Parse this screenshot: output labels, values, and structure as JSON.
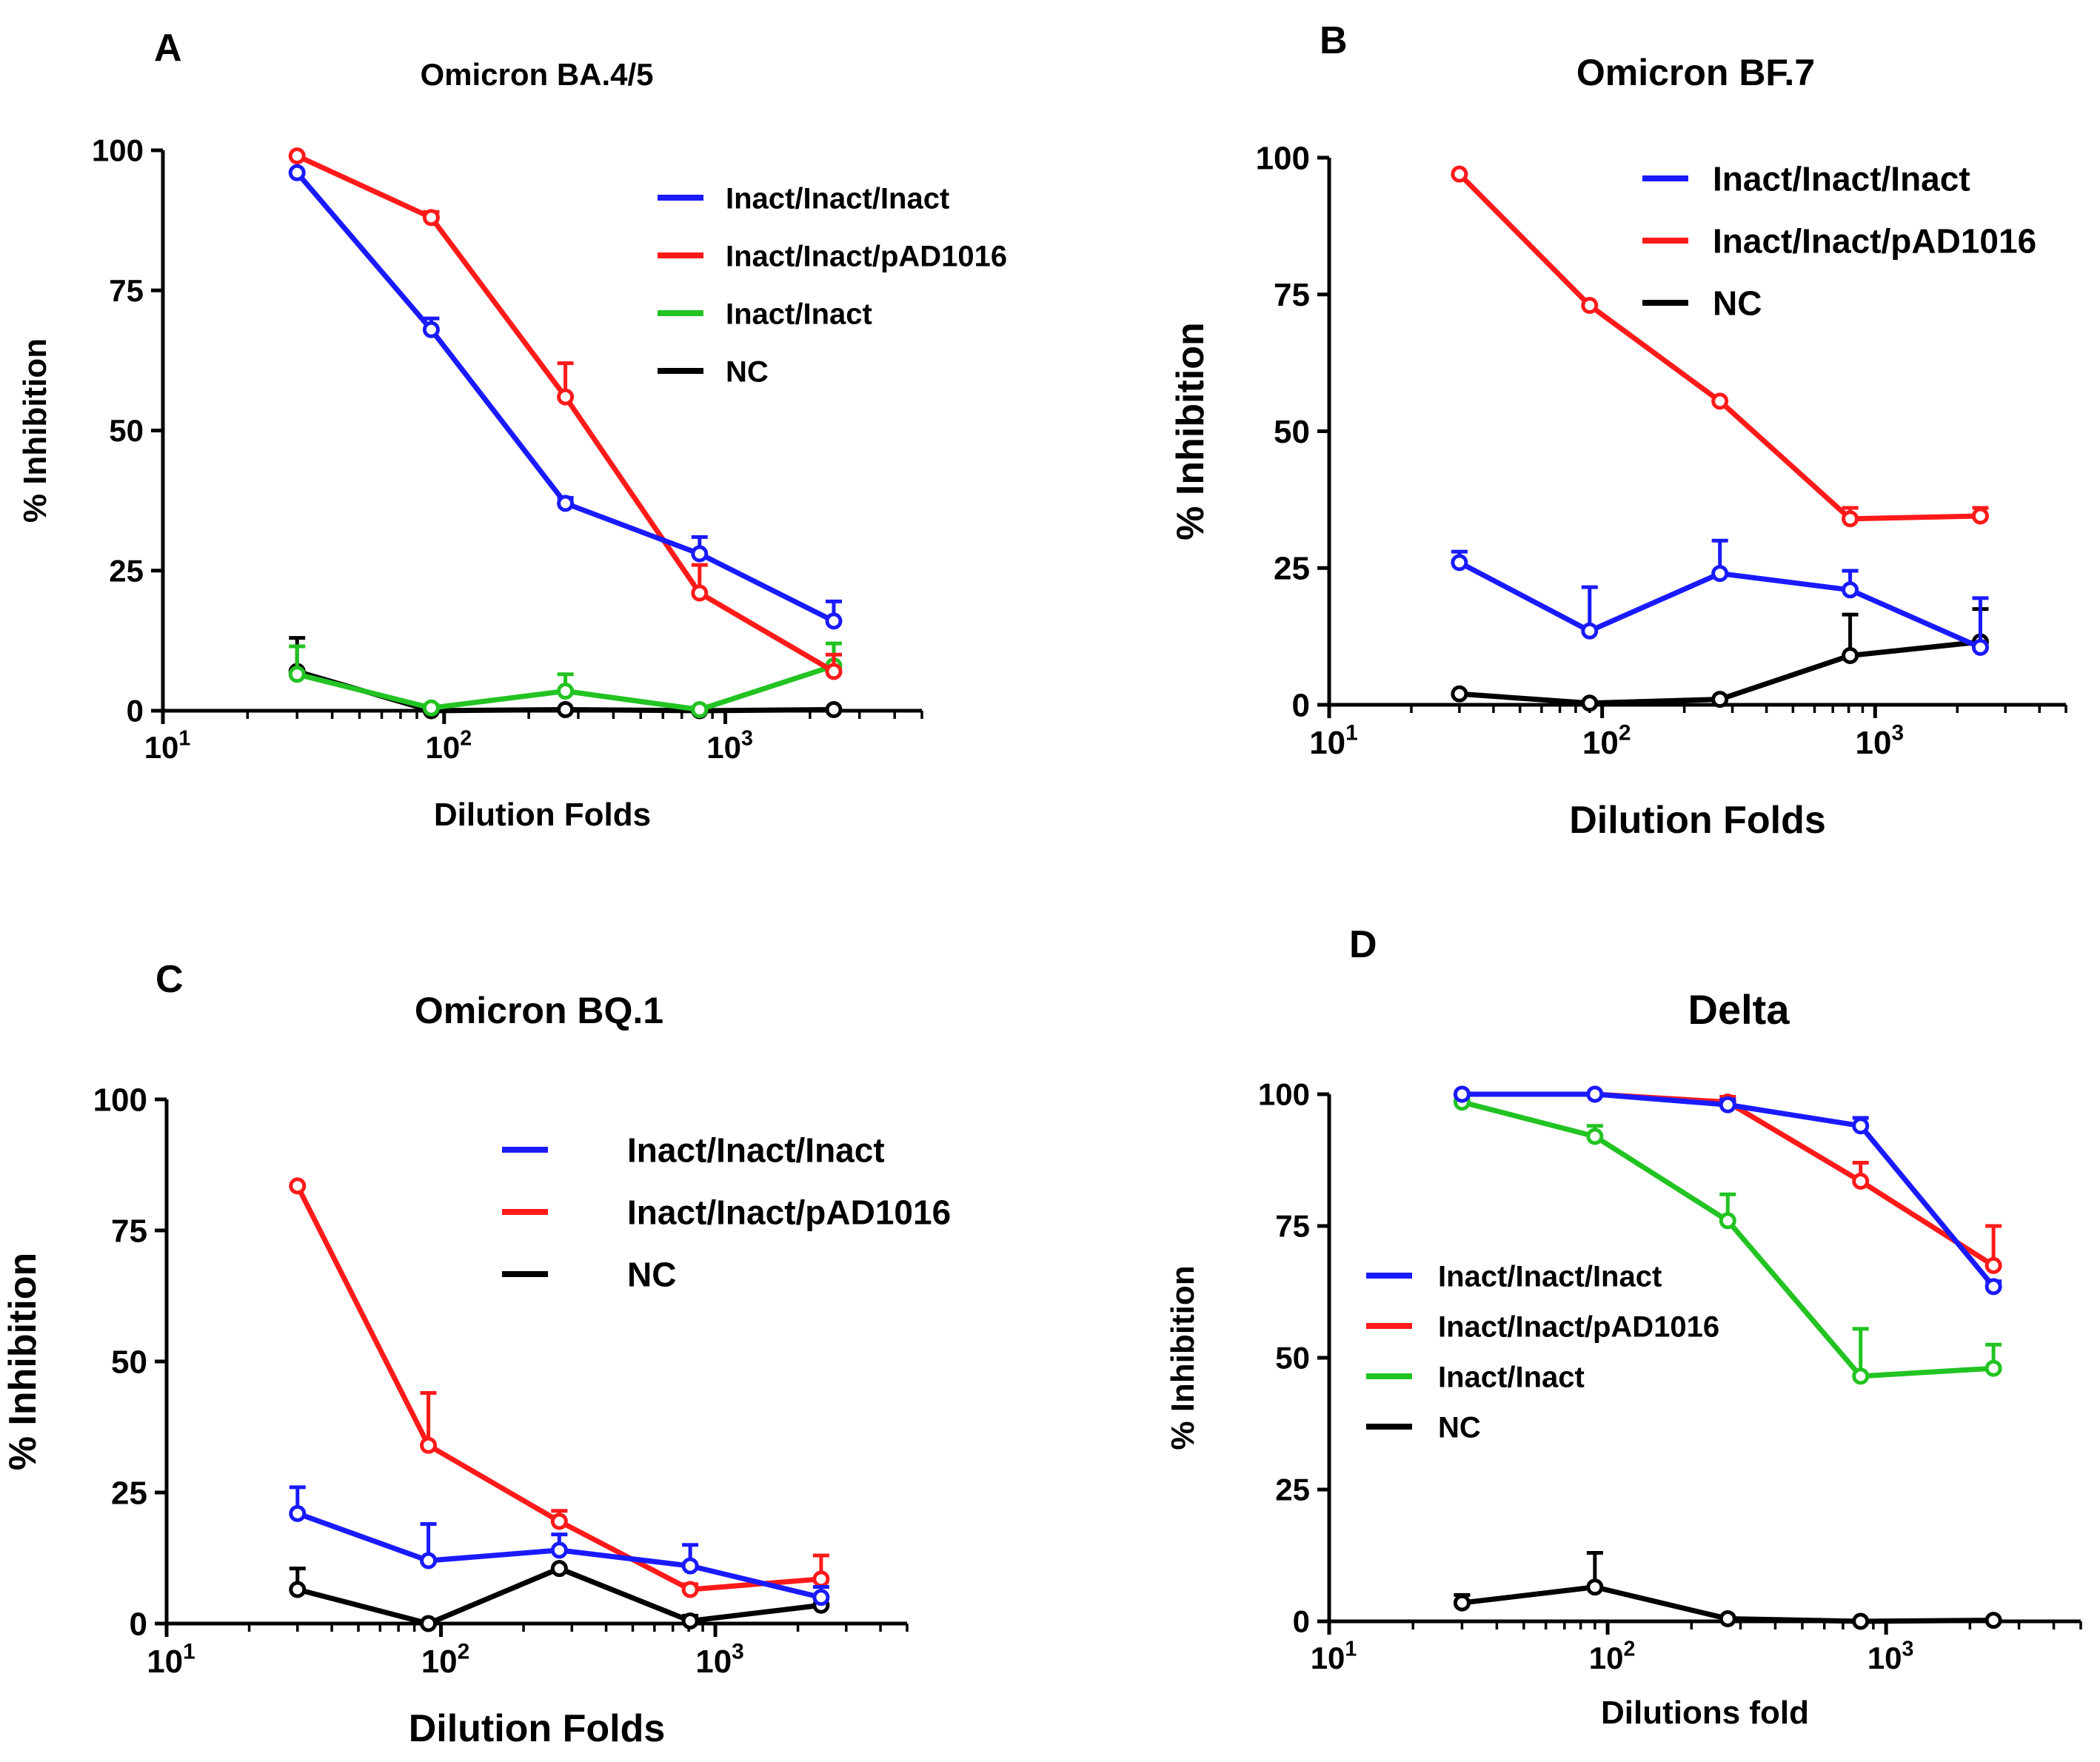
{
  "chart_data": [
    {
      "panel": "A",
      "type": "line",
      "title": "Omicron BA.4/5",
      "xlabel": "Dilution Folds",
      "ylabel": "% Inhibition",
      "xscale": "log10",
      "xlim": [
        10,
        5000
      ],
      "ylim": [
        0,
        100
      ],
      "yticks": [
        0,
        25,
        50,
        75,
        100
      ],
      "xtick_labels": [
        {
          "base": "10",
          "exp": "1"
        },
        {
          "base": "10",
          "exp": "2"
        },
        {
          "base": "10",
          "exp": "3"
        }
      ],
      "x": [
        30,
        90,
        270,
        810,
        2430
      ],
      "legend_position": "top-right",
      "series": [
        {
          "name": "Inact/Inact/Inact",
          "color": "#1a1aff",
          "values": [
            96,
            68,
            37,
            28,
            16
          ],
          "errors": [
            0,
            2,
            1,
            3,
            3.5
          ]
        },
        {
          "name": "Inact/Inact/pAD1016",
          "color": "#ff1a1a",
          "values": [
            99,
            88,
            56,
            21,
            7
          ],
          "errors": [
            0,
            1,
            6,
            5,
            3
          ]
        },
        {
          "name": "Inact/Inact",
          "color": "#22c322",
          "values": [
            6.5,
            0.5,
            3.5,
            0.2,
            8
          ],
          "errors": [
            5,
            0.5,
            3,
            0.5,
            4
          ]
        },
        {
          "name": "NC",
          "color": "#000000",
          "values": [
            7,
            0,
            0.2,
            0,
            0.2
          ],
          "errors": [
            6,
            0,
            0,
            0,
            0
          ]
        }
      ]
    },
    {
      "panel": "B",
      "type": "line",
      "title": "Omicron BF.7",
      "xlabel": "Dilution Folds",
      "ylabel": "% Inhibition",
      "xscale": "log10",
      "xlim": [
        10,
        5000
      ],
      "ylim": [
        0,
        100
      ],
      "yticks": [
        0,
        25,
        50,
        75,
        100
      ],
      "xtick_labels": [
        {
          "base": "10",
          "exp": "1"
        },
        {
          "base": "10",
          "exp": "2"
        },
        {
          "base": "10",
          "exp": "3"
        }
      ],
      "x": [
        30,
        90,
        270,
        810,
        2430
      ],
      "legend_position": "top-right",
      "series": [
        {
          "name": "Inact/Inact/Inact",
          "color": "#1a1aff",
          "values": [
            26,
            13.5,
            24,
            21,
            10.5
          ],
          "errors": [
            2,
            8,
            6,
            3.5,
            9
          ]
        },
        {
          "name": "Inact/Inact/pAD1016",
          "color": "#ff1a1a",
          "values": [
            97,
            73,
            55.5,
            34,
            34.5
          ],
          "errors": [
            0,
            0,
            0,
            2,
            1.5
          ]
        },
        {
          "name": "NC",
          "color": "#000000",
          "values": [
            2,
            0.3,
            1,
            9,
            11.5
          ],
          "errors": [
            0,
            0,
            0,
            7.5,
            6
          ]
        }
      ]
    },
    {
      "panel": "C",
      "type": "line",
      "title": "Omicron BQ.1",
      "xlabel": "Dilution Folds",
      "ylabel": "% Inhibition",
      "xscale": "log10",
      "xlim": [
        10,
        5000
      ],
      "ylim": [
        0,
        100
      ],
      "yticks": [
        0,
        25,
        50,
        75,
        100
      ],
      "xtick_labels": [
        {
          "base": "10",
          "exp": "1"
        },
        {
          "base": "10",
          "exp": "2"
        },
        {
          "base": "10",
          "exp": "3"
        }
      ],
      "x": [
        30,
        90,
        270,
        810,
        2430
      ],
      "legend_position": "top-right",
      "series": [
        {
          "name": "Inact/Inact/Inact",
          "color": "#1a1aff",
          "values": [
            21,
            12,
            14,
            11,
            5
          ],
          "errors": [
            5,
            7,
            3,
            4,
            2
          ]
        },
        {
          "name": "Inact/Inact/pAD1016",
          "color": "#ff1a1a",
          "values": [
            83.5,
            34,
            19.5,
            6.5,
            8.5
          ],
          "errors": [
            0,
            10,
            2,
            1,
            4.5
          ]
        },
        {
          "name": "NC",
          "color": "#000000",
          "values": [
            6.5,
            0,
            10.5,
            0.5,
            3.5
          ],
          "errors": [
            4,
            0,
            0,
            1,
            0
          ]
        }
      ]
    },
    {
      "panel": "D",
      "type": "line",
      "title": "Delta",
      "xlabel": "Dilutions fold",
      "ylabel": "% Inhibition",
      "xscale": "log10",
      "xlim": [
        10,
        5000
      ],
      "ylim": [
        0,
        100
      ],
      "yticks": [
        0,
        25,
        50,
        75,
        100
      ],
      "xtick_labels": [
        {
          "base": "10",
          "exp": "1"
        },
        {
          "base": "10",
          "exp": "2"
        },
        {
          "base": "10",
          "exp": "3"
        }
      ],
      "x": [
        30,
        90,
        270,
        810,
        2430
      ],
      "legend_position": "center-left",
      "series": [
        {
          "name": "Inact/Inact/Inact",
          "color": "#1a1aff",
          "values": [
            100,
            100,
            98,
            94,
            63.5
          ],
          "errors": [
            0,
            0,
            1,
            1.5,
            1
          ]
        },
        {
          "name": "Inact/Inact/pAD1016",
          "color": "#ff1a1a",
          "values": [
            100,
            100,
            98.5,
            83.5,
            67.5
          ],
          "errors": [
            0,
            0,
            1,
            3.5,
            7.5
          ]
        },
        {
          "name": "Inact/Inact",
          "color": "#22c322",
          "values": [
            98.5,
            92,
            76,
            46.5,
            48
          ],
          "errors": [
            0.5,
            2,
            5,
            9,
            4.5
          ]
        },
        {
          "name": "NC",
          "color": "#000000",
          "values": [
            3.5,
            6.5,
            0.5,
            0,
            0.2
          ],
          "errors": [
            1.5,
            6.5,
            0,
            0,
            0
          ]
        }
      ]
    }
  ]
}
